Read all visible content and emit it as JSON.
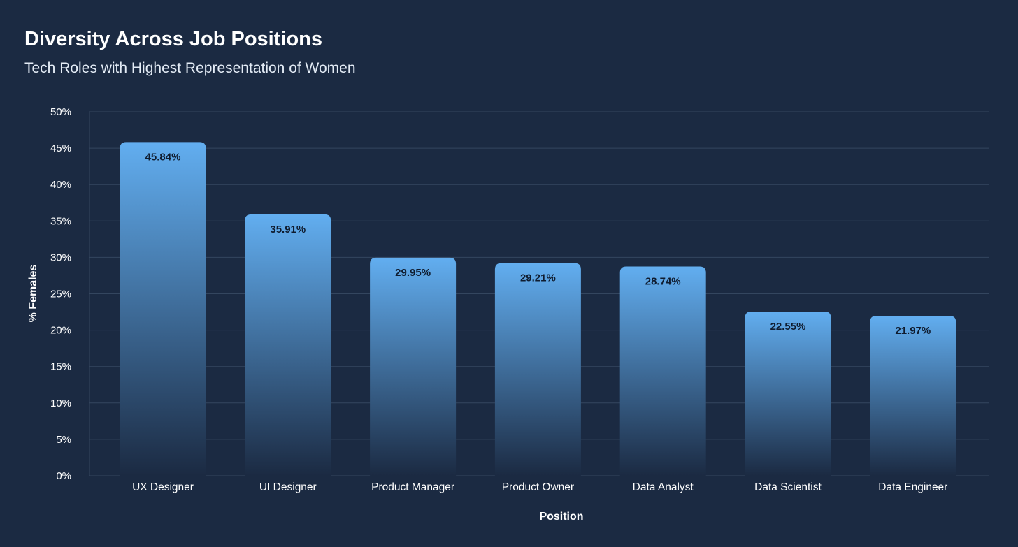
{
  "header": {
    "title": "Diversity Across Job Positions",
    "subtitle": "Tech Roles with Highest Representation of Women"
  },
  "colors": {
    "background": "#1b2a42",
    "bar_top": "#62aef0",
    "bar_bottom": "#1b2a42",
    "grid": "#34465f",
    "bar_label": "#0f1c2f"
  },
  "chart_data": {
    "type": "bar",
    "title": "Diversity Across Job Positions",
    "subtitle": "Tech Roles with Highest Representation of Women",
    "xlabel": "Position",
    "ylabel": "% Females",
    "categories": [
      "UX Designer",
      "UI Designer",
      "Product Manager",
      "Product Owner",
      "Data Analyst",
      "Data Scientist",
      "Data Engineer"
    ],
    "values": [
      45.84,
      35.91,
      29.95,
      29.21,
      28.74,
      22.55,
      21.97
    ],
    "data_labels": [
      "45.84%",
      "35.91%",
      "29.95%",
      "29.21%",
      "28.74%",
      "22.55%",
      "21.97%"
    ],
    "ylim": [
      0,
      50
    ],
    "yticks": [
      0,
      5,
      10,
      15,
      20,
      25,
      30,
      35,
      40,
      45,
      50
    ],
    "ytick_labels": [
      "0%",
      "5%",
      "10%",
      "15%",
      "20%",
      "25%",
      "30%",
      "35%",
      "40%",
      "45%",
      "50%"
    ],
    "grid": true,
    "legend": "none"
  }
}
